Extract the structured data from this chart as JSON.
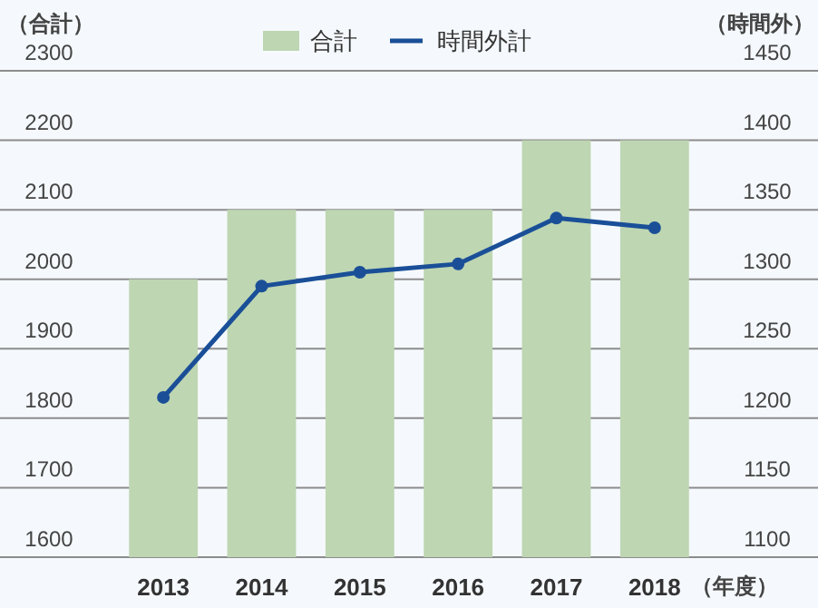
{
  "chart_data": {
    "type": "bar",
    "categories": [
      "2013",
      "2014",
      "2015",
      "2016",
      "2017",
      "2018"
    ],
    "xlabel": "（年度）",
    "ylabel": "（合計）",
    "y2label": "（時間外）",
    "series": [
      {
        "name": "合計",
        "color": "#bed6b2",
        "values": [
          2000,
          2100,
          2100,
          2100,
          2200,
          2200
        ]
      },
      {
        "name": "時間外計",
        "type": "line",
        "axis": "y2",
        "color": "#1a4f98",
        "marker": "circle",
        "values": [
          1215,
          1295,
          1305,
          1311,
          1344,
          1337
        ]
      }
    ],
    "ylim": [
      1600,
      2300
    ],
    "yticks": [
      1600,
      1700,
      1800,
      1900,
      2000,
      2100,
      2200,
      2300
    ],
    "y2lim": [
      1100,
      1450
    ],
    "y2ticks": [
      1100,
      1150,
      1200,
      1250,
      1300,
      1350,
      1400,
      1450
    ],
    "grid": "y",
    "legend": "top"
  }
}
